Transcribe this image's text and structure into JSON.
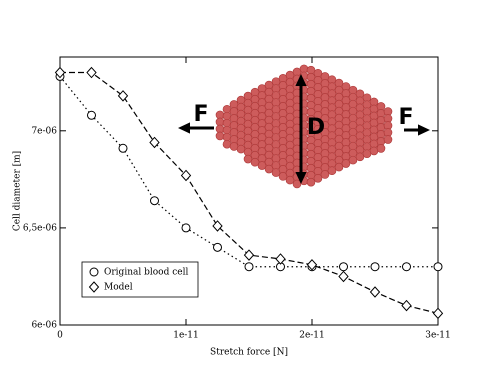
{
  "chart_data": {
    "type": "line",
    "x_label": "Stretch force [N]",
    "y_label": "Cell diameter [m]",
    "x": [
      0,
      2.5e-12,
      5e-12,
      7.5e-12,
      1e-11,
      1.25e-11,
      1.5e-11,
      1.75e-11,
      2e-11,
      2.25e-11,
      2.5e-11,
      2.75e-11,
      3e-11
    ],
    "series": [
      {
        "name": "Original blood cell",
        "color": "#000000",
        "marker": "circle",
        "line_style": "dotted",
        "values": [
          7.28e-06,
          7.08e-06,
          6.91e-06,
          6.64e-06,
          6.5e-06,
          6.4e-06,
          6.3e-06,
          6.3e-06,
          6.3e-06,
          6.3e-06,
          6.3e-06,
          6.3e-06,
          6.3e-06
        ]
      },
      {
        "name": "Model",
        "color": "#000000",
        "marker": "diamond",
        "line_style": "dashed",
        "values": [
          7.3e-06,
          7.3e-06,
          7.18e-06,
          6.94e-06,
          6.77e-06,
          6.51e-06,
          6.36e-06,
          6.34e-06,
          6.31e-06,
          6.25e-06,
          6.17e-06,
          6.1e-06,
          6.06e-06
        ]
      }
    ],
    "xlim": [
      0,
      3e-11
    ],
    "xticks": [
      0,
      1e-11,
      2e-11,
      3e-11
    ],
    "ylim": [
      6e-06,
      7.38e-06
    ],
    "yticks": [
      {
        "value": 6e-06,
        "label": "6e-06"
      },
      {
        "value": 6.5e-06,
        "label": "6,5e-06"
      },
      {
        "value": 7e-06,
        "label": "7e-06"
      }
    ],
    "legend": "lower-left",
    "annotations": [
      "F",
      "D",
      "F"
    ]
  }
}
